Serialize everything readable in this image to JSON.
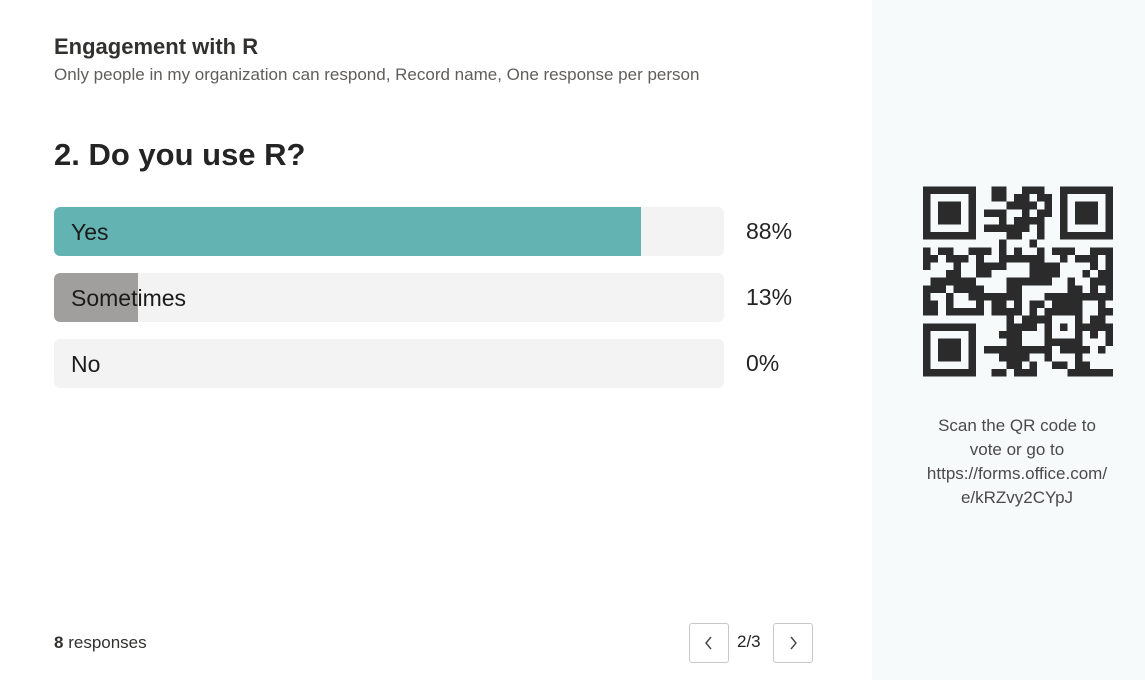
{
  "form": {
    "title": "Engagement with R",
    "settings": "Only people in my organization can respond, Record name, One response per person"
  },
  "question": {
    "title": "2. Do you use R?",
    "options": [
      {
        "label": "Yes",
        "percent_label": "88%",
        "value": 0.88,
        "color": "#64b3b3"
      },
      {
        "label": "Sometimes",
        "percent_label": "13%",
        "value": 0.13,
        "color": "#a19f9d"
      },
      {
        "label": "No",
        "percent_label": "0%",
        "value": 0.0,
        "color": "#a19f9d"
      }
    ]
  },
  "footer": {
    "response_count": "8",
    "response_word": "responses",
    "page": "2/3",
    "prev_icon": "chevron-left-icon",
    "next_icon": "chevron-right-icon"
  },
  "share": {
    "qr_icon": "qr-code-icon",
    "scan_line1": "Scan the QR code to",
    "scan_line2": "vote or go to",
    "url_line1": "https://forms.office.com/",
    "url_line2": "e/kRZvy2CYpJ"
  }
}
